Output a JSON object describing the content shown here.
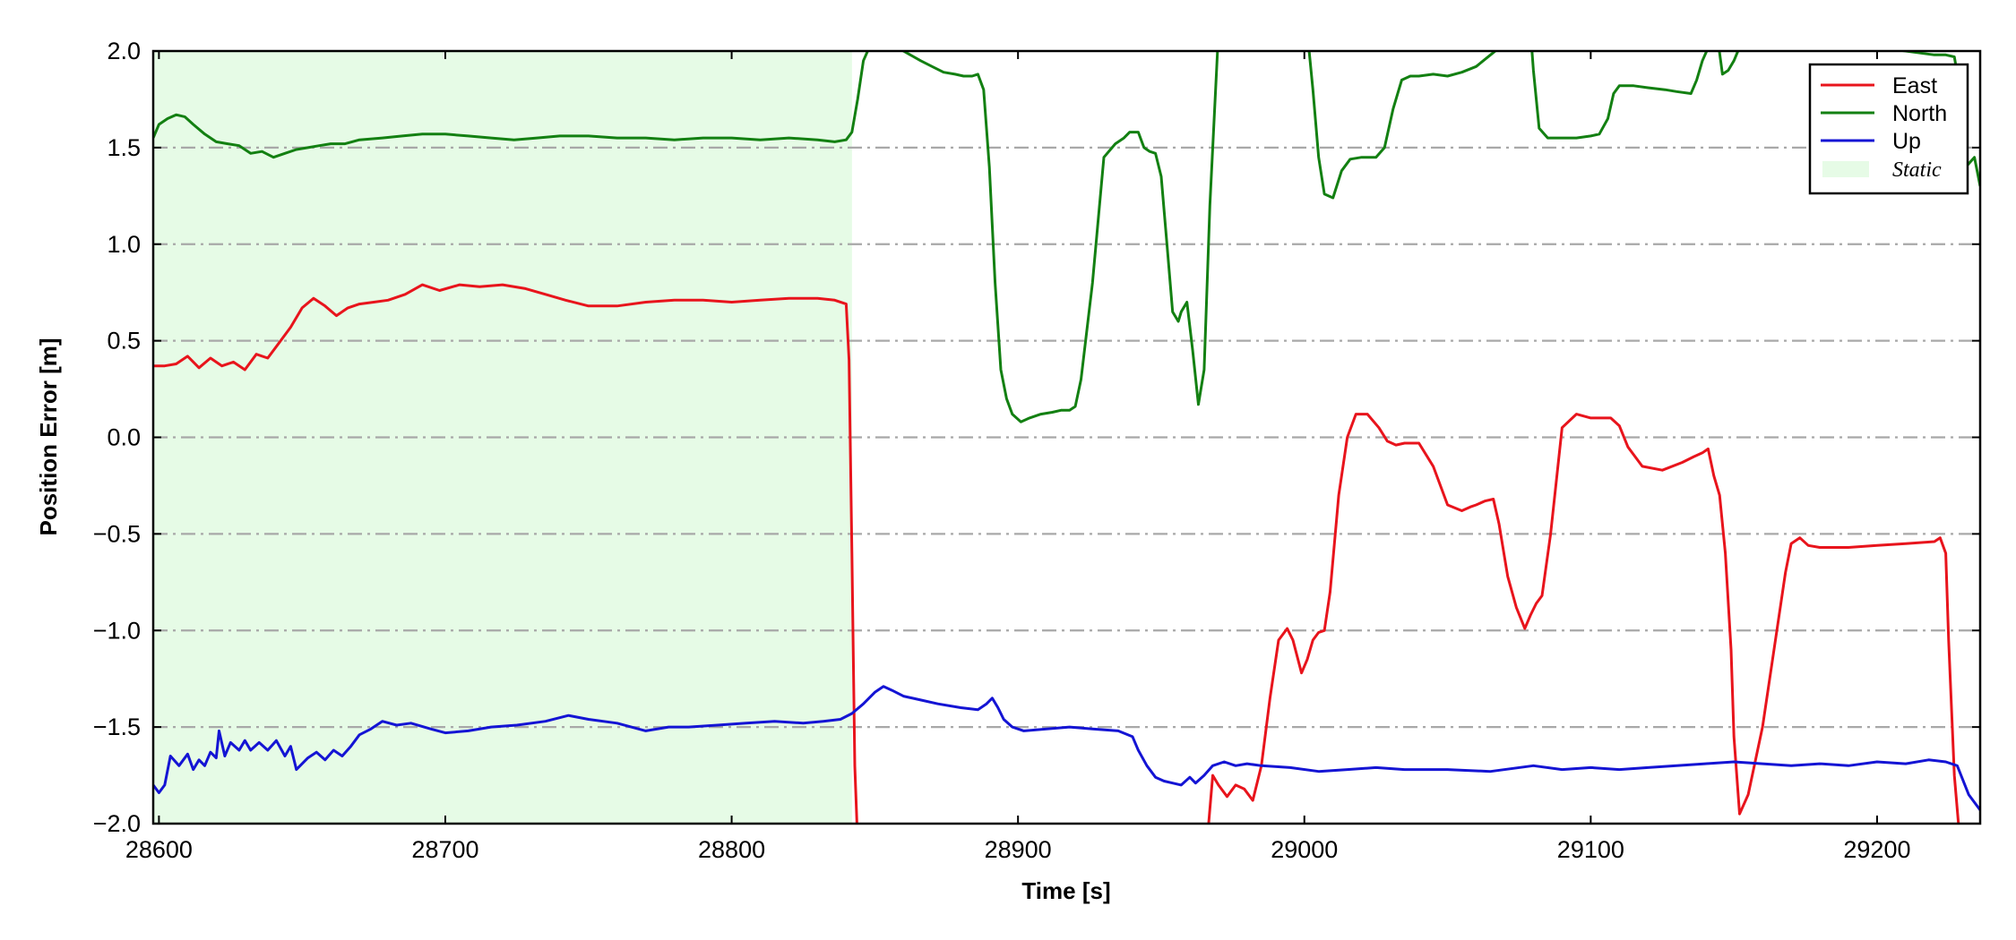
{
  "chart_data": {
    "type": "line",
    "xlabel": "Time [s]",
    "ylabel": "Position Error [m]",
    "xlim": [
      28598,
      29236
    ],
    "ylim": [
      -2.0,
      2.0
    ],
    "xticks": [
      28600,
      28700,
      28800,
      28900,
      29000,
      29100,
      29200
    ],
    "xtick_labels": [
      "28600",
      "28700",
      "28800",
      "28900",
      "29000",
      "29100",
      "29200"
    ],
    "yticks": [
      -2.0,
      -1.5,
      -1.0,
      -0.5,
      0.0,
      0.5,
      1.0,
      1.5,
      2.0
    ],
    "ytick_labels": [
      "−2.0",
      "−1.5",
      "−1.0",
      "−0.5",
      "0.0",
      "0.5",
      "1.0",
      "1.5",
      "2.0"
    ],
    "grid": "horizontal dash-dot",
    "legend_position": "top-right",
    "static_region": {
      "label": "Static",
      "x": [
        28598,
        28842
      ],
      "color": "#e6fbe6"
    },
    "series": [
      {
        "name": "East",
        "color": "#e8141c",
        "x": [
          28598,
          28602,
          28606,
          28610,
          28614,
          28618,
          28622,
          28626,
          28630,
          28634,
          28638,
          28642,
          28646,
          28650,
          28654,
          28658,
          28662,
          28666,
          28670,
          28675,
          28680,
          28686,
          28692,
          28698,
          28705,
          28712,
          28720,
          28728,
          28735,
          28742,
          28750,
          28760,
          28770,
          28780,
          28790,
          28800,
          28810,
          28820,
          28830,
          28836,
          28840,
          28841,
          28842,
          28843,
          28844,
          28966,
          28968,
          28970,
          28973,
          28976,
          28979,
          28982,
          28985,
          28988,
          28991,
          28994,
          28996,
          28999,
          29001,
          29003,
          29005,
          29007,
          29009,
          29012,
          29015,
          29018,
          29022,
          29026,
          29029,
          29032,
          29035,
          29040,
          29045,
          29050,
          29055,
          29058,
          29060,
          29063,
          29066,
          29068,
          29071,
          29074,
          29077,
          29079,
          29081,
          29083,
          29086,
          29090,
          29095,
          29100,
          29104,
          29107,
          29110,
          29113,
          29118,
          29125,
          29132,
          29136,
          29139,
          29141,
          29143,
          29145,
          29147,
          29149,
          29150,
          29152,
          29155,
          29160,
          29165,
          29168,
          29170,
          29173,
          29176,
          29180,
          29190,
          29200,
          29210,
          29220,
          29222,
          29224,
          29225,
          29227,
          29229
        ],
        "values": [
          0.37,
          0.37,
          0.38,
          0.42,
          0.36,
          0.41,
          0.37,
          0.39,
          0.35,
          0.43,
          0.41,
          0.49,
          0.57,
          0.67,
          0.72,
          0.68,
          0.63,
          0.67,
          0.69,
          0.7,
          0.71,
          0.74,
          0.79,
          0.76,
          0.79,
          0.78,
          0.79,
          0.77,
          0.74,
          0.71,
          0.68,
          0.68,
          0.7,
          0.71,
          0.71,
          0.7,
          0.71,
          0.72,
          0.72,
          0.71,
          0.69,
          0.4,
          -0.6,
          -1.7,
          -2.1,
          -2.1,
          -1.75,
          -1.8,
          -1.86,
          -1.8,
          -1.82,
          -1.88,
          -1.7,
          -1.35,
          -1.05,
          -0.99,
          -1.05,
          -1.22,
          -1.15,
          -1.05,
          -1.01,
          -1.0,
          -0.8,
          -0.3,
          0.0,
          0.12,
          0.12,
          0.05,
          -0.02,
          -0.04,
          -0.03,
          -0.03,
          -0.15,
          -0.35,
          -0.38,
          -0.36,
          -0.35,
          -0.33,
          -0.32,
          -0.45,
          -0.72,
          -0.88,
          -0.99,
          -0.92,
          -0.86,
          -0.82,
          -0.5,
          0.05,
          0.12,
          0.1,
          0.1,
          0.1,
          0.06,
          -0.05,
          -0.15,
          -0.17,
          -0.13,
          -0.1,
          -0.08,
          -0.06,
          -0.2,
          -0.3,
          -0.6,
          -1.1,
          -1.55,
          -1.95,
          -1.85,
          -1.5,
          -1.0,
          -0.7,
          -0.55,
          -0.52,
          -0.56,
          -0.57,
          -0.57,
          -0.56,
          -0.55,
          -0.54,
          -0.52,
          -0.6,
          -1.05,
          -1.75,
          -2.1
        ]
      },
      {
        "name": "North",
        "color": "#138012",
        "x": [
          28598,
          28600,
          28603,
          28606,
          28609,
          28612,
          28616,
          28620,
          28624,
          28628,
          28632,
          28636,
          28640,
          28644,
          28648,
          28652,
          28656,
          28660,
          28665,
          28670,
          28678,
          28685,
          28692,
          28700,
          28708,
          28716,
          28724,
          28732,
          28740,
          28750,
          28760,
          28770,
          28780,
          28790,
          28800,
          28810,
          28820,
          28830,
          28836,
          28840,
          28842,
          28844,
          28846,
          28849,
          28851,
          28855,
          28860,
          28866,
          28870,
          28874,
          28878,
          28881,
          28884,
          28886,
          28888,
          28890,
          28892,
          28894,
          28896,
          28898,
          28901,
          28904,
          28908,
          28912,
          28915,
          28918,
          28920,
          28922,
          28926,
          28930,
          28934,
          28937,
          28939,
          28942,
          28944,
          28946,
          28948,
          28950,
          28952,
          28954,
          28956,
          28957,
          28959,
          28961,
          28963,
          28965,
          28967,
          28970,
          29001,
          29003,
          29005,
          29007,
          29010,
          29013,
          29016,
          29020,
          29025,
          29028,
          29031,
          29034,
          29037,
          29040,
          29045,
          29050,
          29055,
          29060,
          29065,
          29075,
          29079,
          29080,
          29082,
          29085,
          29090,
          29095,
          29100,
          29103,
          29106,
          29108,
          29110,
          29115,
          29120,
          29126,
          29130,
          29135,
          29137,
          29139,
          29142,
          29144,
          29146,
          29148,
          29150,
          29152,
          29154,
          29160,
          29168,
          29176,
          29185,
          29195,
          29200,
          29205,
          29210,
          29215,
          29220,
          29224,
          29227,
          29229,
          29231,
          29234,
          29236
        ],
        "values": [
          1.55,
          1.62,
          1.65,
          1.67,
          1.66,
          1.62,
          1.57,
          1.53,
          1.52,
          1.51,
          1.47,
          1.48,
          1.45,
          1.47,
          1.49,
          1.5,
          1.51,
          1.52,
          1.52,
          1.54,
          1.55,
          1.56,
          1.57,
          1.57,
          1.56,
          1.55,
          1.54,
          1.55,
          1.56,
          1.56,
          1.55,
          1.55,
          1.54,
          1.55,
          1.55,
          1.54,
          1.55,
          1.54,
          1.53,
          1.54,
          1.58,
          1.75,
          1.95,
          2.05,
          2.1,
          2.05,
          2.0,
          1.95,
          1.92,
          1.89,
          1.88,
          1.87,
          1.87,
          1.88,
          1.8,
          1.4,
          0.8,
          0.35,
          0.2,
          0.12,
          0.08,
          0.1,
          0.12,
          0.13,
          0.14,
          0.14,
          0.16,
          0.3,
          0.8,
          1.45,
          1.52,
          1.55,
          1.58,
          1.58,
          1.5,
          1.48,
          1.47,
          1.35,
          1.0,
          0.65,
          0.6,
          0.65,
          0.7,
          0.45,
          0.17,
          0.35,
          1.2,
          2.1,
          2.1,
          1.8,
          1.45,
          1.26,
          1.24,
          1.38,
          1.44,
          1.45,
          1.45,
          1.5,
          1.7,
          1.85,
          1.87,
          1.87,
          1.88,
          1.87,
          1.89,
          1.92,
          1.98,
          2.1,
          2.1,
          1.9,
          1.6,
          1.55,
          1.55,
          1.55,
          1.56,
          1.57,
          1.65,
          1.78,
          1.82,
          1.82,
          1.81,
          1.8,
          1.79,
          1.78,
          1.85,
          1.95,
          2.05,
          2.1,
          1.88,
          1.9,
          1.95,
          2.02,
          2.04,
          2.05,
          2.06,
          2.05,
          2.04,
          2.03,
          2.02,
          2.01,
          2.0,
          1.99,
          1.98,
          1.98,
          1.97,
          1.8,
          1.4,
          1.45,
          1.3
        ]
      },
      {
        "name": "Up",
        "color": "#1414d4",
        "x": [
          28598,
          28600,
          28602,
          28604,
          28607,
          28610,
          28612,
          28614,
          28616,
          28618,
          28620,
          28621,
          28623,
          28625,
          28628,
          28630,
          28632,
          28635,
          28638,
          28641,
          28644,
          28646,
          28648,
          28652,
          28655,
          28658,
          28661,
          28664,
          28667,
          28670,
          28674,
          28678,
          28683,
          28688,
          28695,
          28700,
          28708,
          28716,
          28725,
          28735,
          28743,
          28750,
          28760,
          28770,
          28778,
          28785,
          28795,
          28805,
          28815,
          28825,
          28832,
          28838,
          28842,
          28846,
          28850,
          28853,
          28856,
          28860,
          28866,
          28872,
          28880,
          28886,
          28889,
          28891,
          28893,
          28895,
          28898,
          28902,
          28910,
          28918,
          28926,
          28935,
          28940,
          28942,
          28945,
          28948,
          28951,
          28954,
          28957,
          28960,
          28962,
          28965,
          28968,
          28972,
          28976,
          28980,
          28985,
          28995,
          29005,
          29015,
          29025,
          29035,
          29050,
          29065,
          29080,
          29090,
          29100,
          29110,
          29120,
          29130,
          29140,
          29150,
          29160,
          29170,
          29180,
          29190,
          29200,
          29210,
          29218,
          29224,
          29228,
          29232,
          29236
        ],
        "values": [
          -1.8,
          -1.84,
          -1.8,
          -1.65,
          -1.7,
          -1.64,
          -1.72,
          -1.67,
          -1.7,
          -1.63,
          -1.66,
          -1.52,
          -1.65,
          -1.58,
          -1.62,
          -1.57,
          -1.62,
          -1.58,
          -1.62,
          -1.57,
          -1.65,
          -1.6,
          -1.72,
          -1.66,
          -1.63,
          -1.67,
          -1.62,
          -1.65,
          -1.6,
          -1.54,
          -1.51,
          -1.47,
          -1.49,
          -1.48,
          -1.51,
          -1.53,
          -1.52,
          -1.5,
          -1.49,
          -1.47,
          -1.44,
          -1.46,
          -1.48,
          -1.52,
          -1.5,
          -1.5,
          -1.49,
          -1.48,
          -1.47,
          -1.48,
          -1.47,
          -1.46,
          -1.43,
          -1.38,
          -1.32,
          -1.29,
          -1.31,
          -1.34,
          -1.36,
          -1.38,
          -1.4,
          -1.41,
          -1.38,
          -1.35,
          -1.4,
          -1.46,
          -1.5,
          -1.52,
          -1.51,
          -1.5,
          -1.51,
          -1.52,
          -1.55,
          -1.62,
          -1.7,
          -1.76,
          -1.78,
          -1.79,
          -1.8,
          -1.76,
          -1.79,
          -1.75,
          -1.7,
          -1.68,
          -1.7,
          -1.69,
          -1.7,
          -1.71,
          -1.73,
          -1.72,
          -1.71,
          -1.72,
          -1.72,
          -1.73,
          -1.7,
          -1.72,
          -1.71,
          -1.72,
          -1.71,
          -1.7,
          -1.69,
          -1.68,
          -1.69,
          -1.7,
          -1.69,
          -1.7,
          -1.68,
          -1.69,
          -1.67,
          -1.68,
          -1.7,
          -1.85,
          -1.93
        ]
      }
    ]
  }
}
